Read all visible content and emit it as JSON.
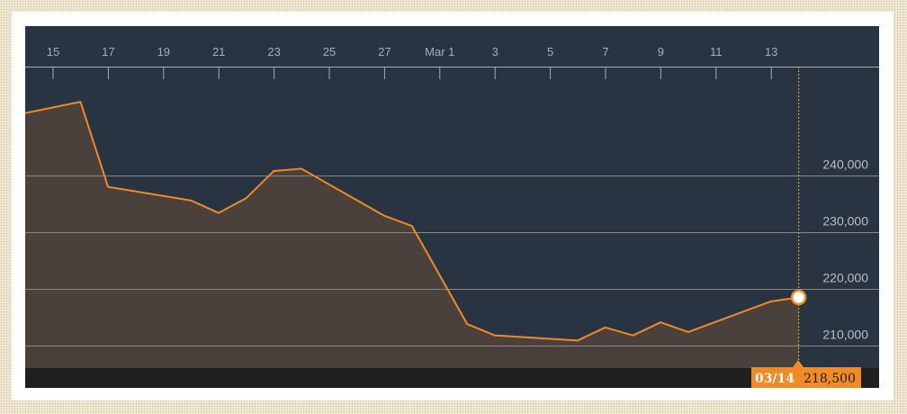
{
  "chart_data": {
    "type": "area",
    "x_tick_labels": [
      "15",
      "17",
      "19",
      "21",
      "23",
      "25",
      "27",
      "Mar 1",
      "3",
      "5",
      "7",
      "9",
      "11",
      "13"
    ],
    "y_tick_labels": [
      "210,000",
      "220,000",
      "230,000",
      "240,000"
    ],
    "y_ticks": [
      210000,
      220000,
      230000,
      240000
    ],
    "ylim": [
      206000,
      253500
    ],
    "x": [
      "02-14",
      "02-16",
      "02-17",
      "02-20",
      "02-21",
      "02-22",
      "02-23",
      "02-24",
      "02-27",
      "02-28",
      "03-02",
      "03-03",
      "03-06",
      "03-07",
      "03-08",
      "03-09",
      "03-10",
      "03-13",
      "03-14"
    ],
    "series": [
      {
        "values": [
          251000,
          253000,
          238000,
          235600,
          233400,
          236000,
          240800,
          241200,
          232900,
          231100,
          213800,
          211800,
          210900,
          213200,
          211800,
          214100,
          212400,
          217800,
          218500
        ]
      }
    ],
    "grid": true,
    "marker": {
      "date_label": "03/14",
      "value_label": "218,500",
      "value": 218500
    },
    "colors": {
      "line": "#f08a24",
      "area": "#4b413c",
      "plot_background": "#283441",
      "gridline": "#8a8780",
      "axis_band": "#1f1f1f",
      "marker_line": "#d8a02c"
    }
  }
}
